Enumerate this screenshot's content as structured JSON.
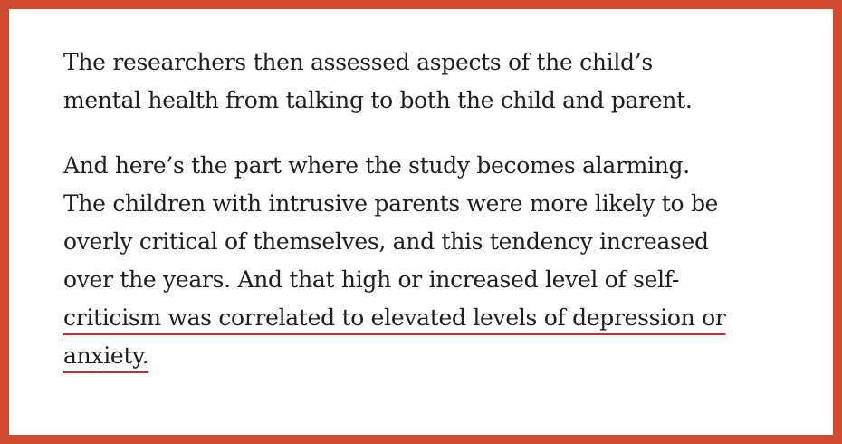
{
  "article": {
    "paragraphs": [
      {
        "lines": [
          "The researchers then assessed aspects of the child’s",
          "mental health from talking to both the child and parent."
        ]
      },
      {
        "lines": [
          "And here’s the part where the study becomes alarming.",
          "The children with intrusive parents were more likely to be",
          "overly critical of themselves, and this tendency increased",
          "over the years. And that high or increased level of self-",
          "criticism was correlated to elevated levels of depression or",
          "anxiety."
        ]
      }
    ],
    "highlight_color": "#e0232b",
    "border_color": "#d04a30"
  }
}
